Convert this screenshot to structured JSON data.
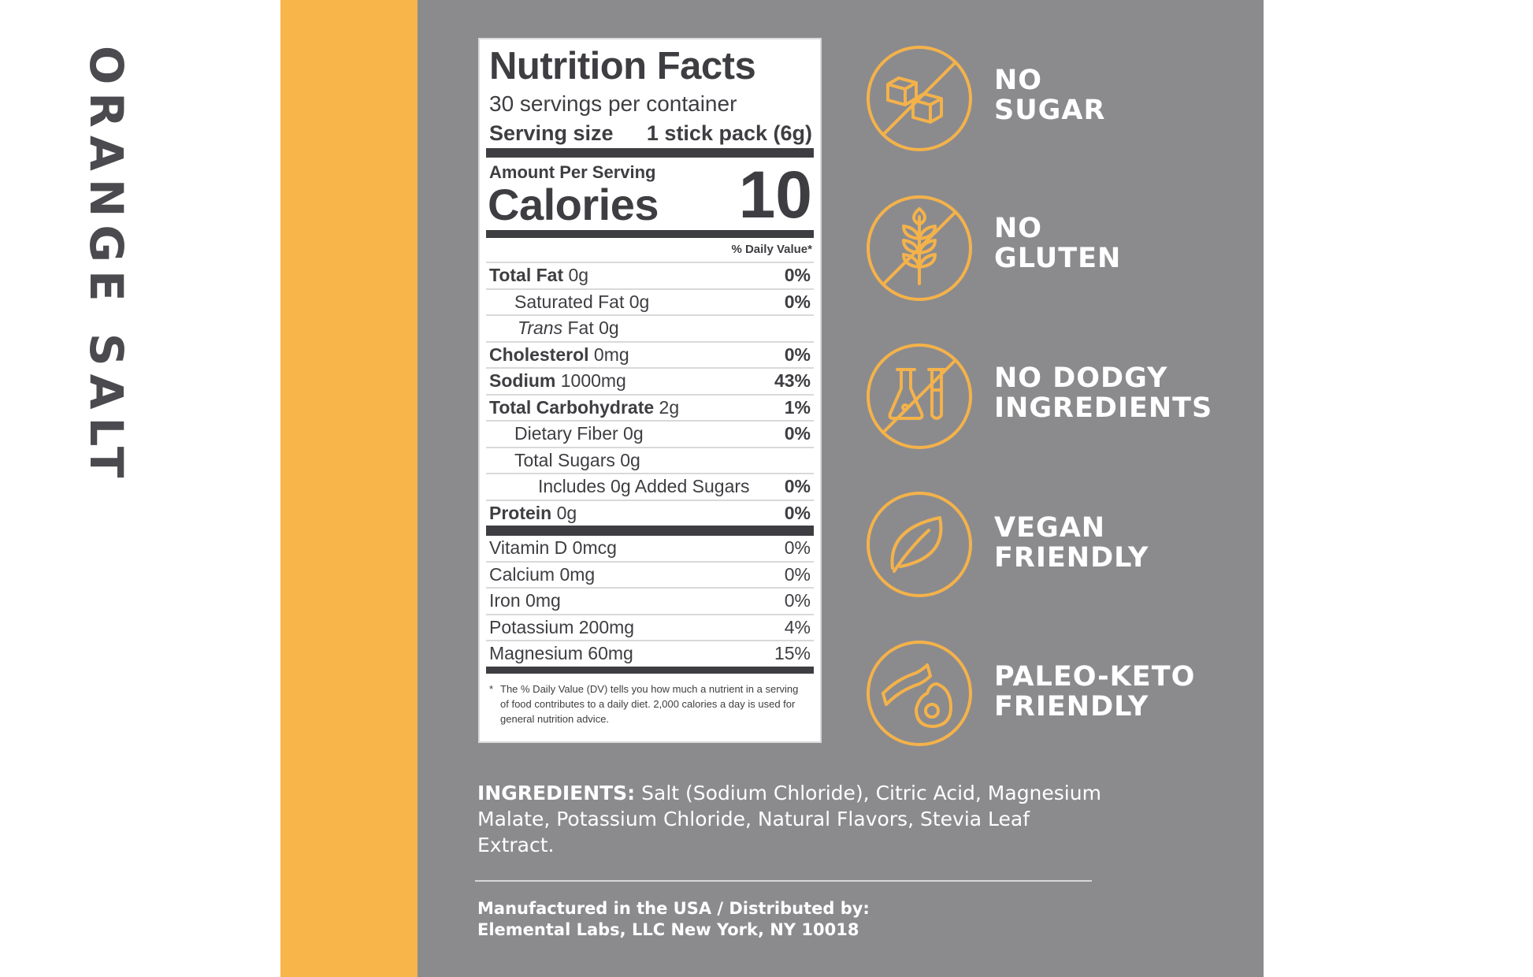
{
  "product": {
    "name": "ORANGE SALT"
  },
  "colors": {
    "accent": "#f8b54a",
    "panel": "#8b8b8e",
    "label_text": "#3e3e42",
    "icon_stroke": "#f4b24a"
  },
  "nutrition": {
    "title": "Nutrition Facts",
    "servings": "30 servings per container",
    "serving_size_label": "Serving size",
    "serving_size_value": "1 stick pack (6g)",
    "amount_per_serving": "Amount Per Serving",
    "calories_label": "Calories",
    "calories_value": "10",
    "dv_header": "% Daily Value*",
    "nutrients": [
      {
        "name": "Total Fat",
        "amount": "0g",
        "dv": "0%"
      },
      {
        "name": "Saturated Fat",
        "amount": "0g",
        "dv": "0%"
      },
      {
        "name": "Trans",
        "amount": "Fat 0g",
        "dv": ""
      },
      {
        "name": "Cholesterol",
        "amount": "0mg",
        "dv": "0%"
      },
      {
        "name": "Sodium",
        "amount": "1000mg",
        "dv": "43%"
      },
      {
        "name": "Total Carbohydrate",
        "amount": "2g",
        "dv": "1%"
      },
      {
        "name": "Dietary Fiber",
        "amount": "0g",
        "dv": "0%"
      },
      {
        "name": "Total Sugars",
        "amount": "0g",
        "dv": ""
      },
      {
        "name": "Includes 0g Added Sugars",
        "amount": "",
        "dv": "0%"
      },
      {
        "name": "Protein",
        "amount": "0g",
        "dv": "0%"
      }
    ],
    "vitamins": [
      {
        "name": "Vitamin D 0mcg",
        "dv": "0%"
      },
      {
        "name": "Calcium 0mg",
        "dv": "0%"
      },
      {
        "name": "Iron 0mg",
        "dv": "0%"
      },
      {
        "name": "Potassium 200mg",
        "dv": "4%"
      },
      {
        "name": "Magnesium 60mg",
        "dv": "15%"
      }
    ],
    "footnote_star": "*",
    "footnote": "The % Daily Value (DV) tells you how much a nutrient in a serving of food contributes to a daily diet. 2,000 calories a day is used for general nutrition advice."
  },
  "claims": [
    {
      "line1": "NO",
      "line2": "SUGAR",
      "icon": "no-sugar-cubes-icon"
    },
    {
      "line1": "NO",
      "line2": "GLUTEN",
      "icon": "no-wheat-icon"
    },
    {
      "line1": "NO DODGY",
      "line2": "INGREDIENTS",
      "icon": "no-lab-flask-icon"
    },
    {
      "line1": "VEGAN",
      "line2": "FRIENDLY",
      "icon": "leaf-icon"
    },
    {
      "line1": "PALEO-KETO",
      "line2": "FRIENDLY",
      "icon": "bacon-avocado-icon"
    }
  ],
  "ingredients": {
    "label": "INGREDIENTS:",
    "text": "Salt (Sodium Chloride), Citric Acid, Magnesium Malate, Potassium Chloride, Natural Flavors, Stevia Leaf Extract."
  },
  "manufacturer": {
    "line1": "Manufactured in the USA / Distributed by:",
    "line2": "Elemental Labs, LLC New York, NY 10018"
  }
}
